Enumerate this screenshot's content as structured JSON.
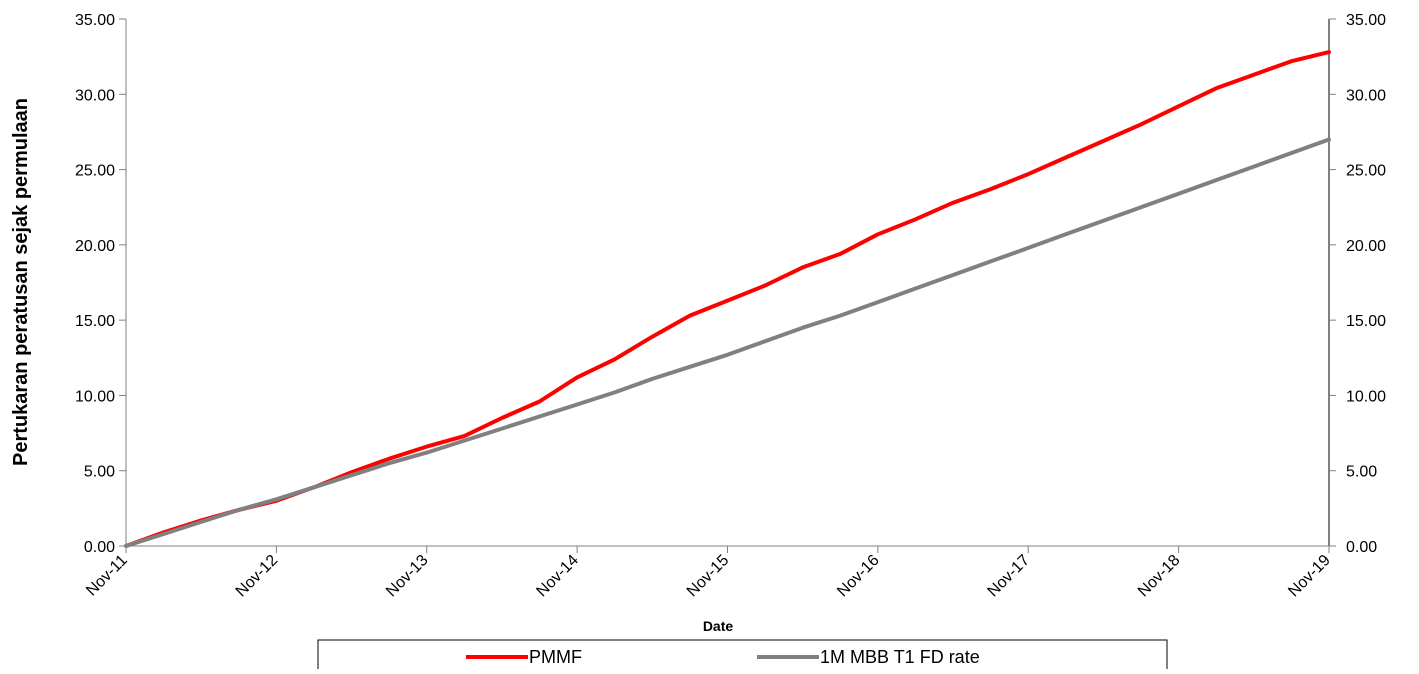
{
  "chart_data": {
    "type": "line",
    "title": "",
    "xlabel": "Date",
    "ylabel": "Pertukaran peratusan sejak permulaan",
    "ylim": [
      0,
      35
    ],
    "y_ticks": [
      "0.00",
      "5.00",
      "10.00",
      "15.00",
      "20.00",
      "25.00",
      "30.00",
      "35.00"
    ],
    "y2_ticks": [
      "0.00",
      "5.00",
      "10.00",
      "15.00",
      "20.00",
      "25.00",
      "30.00",
      "35.00"
    ],
    "categories": [
      "Nov-11",
      "Nov-12",
      "Nov-13",
      "Nov-14",
      "Nov-15",
      "Nov-16",
      "Nov-17",
      "Nov-18",
      "Nov-19"
    ],
    "grid": false,
    "legend_position": "bottom",
    "series": [
      {
        "name": "PMMF",
        "color": "#ff0000",
        "x": [
          "Nov-11",
          "Feb-12",
          "May-12",
          "Aug-12",
          "Nov-12",
          "Feb-13",
          "May-13",
          "Aug-13",
          "Nov-13",
          "Feb-14",
          "May-14",
          "Aug-14",
          "Nov-14",
          "Feb-15",
          "May-15",
          "Aug-15",
          "Nov-15",
          "Feb-16",
          "May-16",
          "Aug-16",
          "Nov-16",
          "Feb-17",
          "May-17",
          "Aug-17",
          "Nov-17",
          "Feb-18",
          "May-18",
          "Aug-18",
          "Nov-18",
          "Feb-19",
          "May-19",
          "Aug-19",
          "Nov-19"
        ],
        "values": [
          0.0,
          0.9,
          1.7,
          2.4,
          3.0,
          3.9,
          4.9,
          5.8,
          6.6,
          7.3,
          8.5,
          9.6,
          11.2,
          12.4,
          13.9,
          15.3,
          16.3,
          17.3,
          18.5,
          19.4,
          20.7,
          21.7,
          22.8,
          23.7,
          24.7,
          25.8,
          26.9,
          28.0,
          29.2,
          30.4,
          31.3,
          32.2,
          32.8
        ]
      },
      {
        "name": "1M MBB T1 FD rate",
        "color": "#808080",
        "x": [
          "Nov-11",
          "Feb-12",
          "May-12",
          "Aug-12",
          "Nov-12",
          "Feb-13",
          "May-13",
          "Aug-13",
          "Nov-13",
          "Feb-14",
          "May-14",
          "Aug-14",
          "Nov-14",
          "Feb-15",
          "May-15",
          "Aug-15",
          "Nov-15",
          "Feb-16",
          "May-16",
          "Aug-16",
          "Nov-16",
          "Feb-17",
          "May-17",
          "Aug-17",
          "Nov-17",
          "Feb-18",
          "May-18",
          "Aug-18",
          "Nov-18",
          "Feb-19",
          "May-19",
          "Aug-19",
          "Nov-19"
        ],
        "values": [
          0.0,
          0.8,
          1.6,
          2.4,
          3.1,
          3.9,
          4.7,
          5.5,
          6.2,
          7.0,
          7.8,
          8.6,
          9.4,
          10.2,
          11.1,
          11.9,
          12.7,
          13.6,
          14.5,
          15.3,
          16.2,
          17.1,
          18.0,
          18.9,
          19.8,
          20.7,
          21.6,
          22.5,
          23.4,
          24.3,
          25.2,
          26.1,
          27.0
        ]
      }
    ]
  }
}
